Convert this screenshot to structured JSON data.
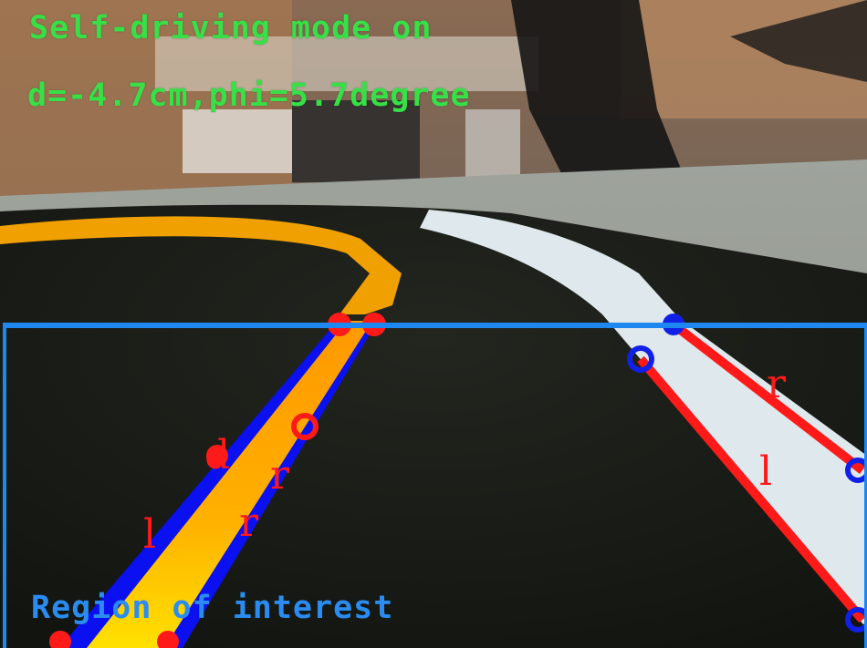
{
  "hud": {
    "status": "Self-driving mode on",
    "metrics": "d=-4.7cm,phi=5.7degree",
    "roi_label": "Region of interest"
  },
  "lane_tags": {
    "left_lane_left_edge": "l",
    "left_lane_right_edge_upper": "r",
    "left_lane_right_edge_lower": "r",
    "left_lane_center": "d",
    "right_lane_left_edge": "l",
    "right_lane_right_edge": "r"
  },
  "colors": {
    "hud_text": "#36e046",
    "roi_border": "#1e88f0",
    "lane_line": "#ff1a1a",
    "lane_fill": "#0a10f0",
    "yellow_line": "#ffa000",
    "white_line": "#dfe8ec",
    "keypoint_red": "#ff1a1a",
    "keypoint_blue": "#1020e6"
  }
}
